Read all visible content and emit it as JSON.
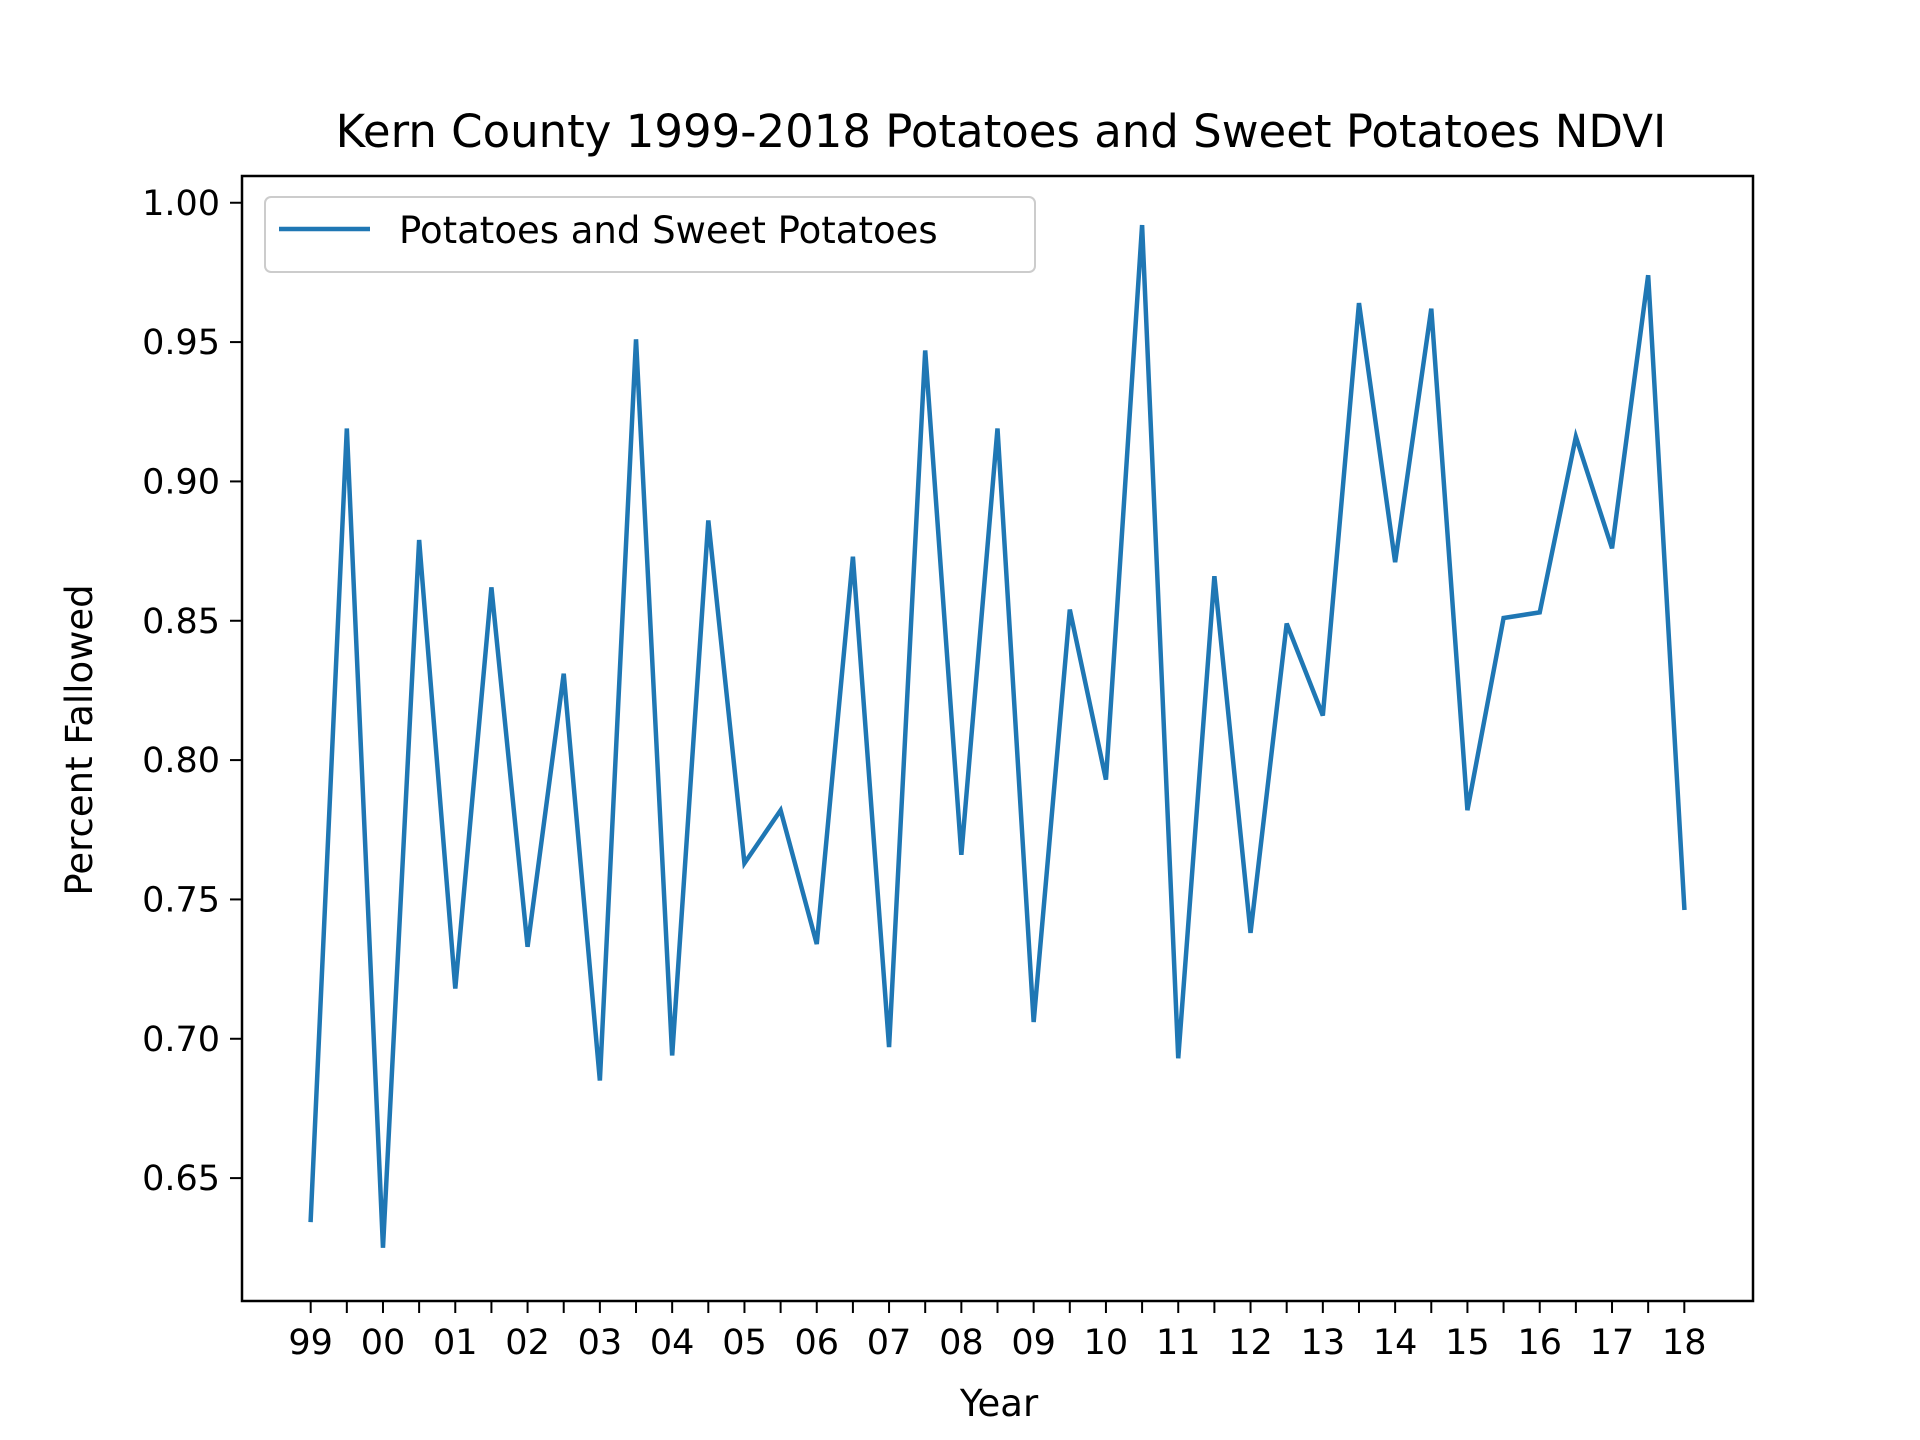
{
  "chart_data": {
    "type": "line",
    "title": "Kern County 1999-2018 Potatoes and Sweet Potatoes NDVI",
    "xlabel": "Year",
    "ylabel": "Percent Fallowed",
    "x_tick_labels": [
      "99",
      "00",
      "01",
      "02",
      "03",
      "04",
      "05",
      "06",
      "07",
      "08",
      "09",
      "10",
      "11",
      "12",
      "13",
      "14",
      "15",
      "16",
      "17",
      "18"
    ],
    "y_tick_labels": [
      "0.65",
      "0.70",
      "0.75",
      "0.80",
      "0.85",
      "0.90",
      "0.95",
      "1.00"
    ],
    "y_ticks": [
      0.65,
      0.7,
      0.75,
      0.8,
      0.85,
      0.9,
      0.95,
      1.0
    ],
    "xlim": [
      1998.05,
      2018.95
    ],
    "ylim": [
      0.6059,
      1.0096
    ],
    "grid": false,
    "legend_position": "top-left",
    "series": [
      {
        "name": "Potatoes and Sweet Potatoes",
        "color": "#1f77b4",
        "x": [
          1999,
          1999.5,
          2000,
          2000.5,
          2001,
          2001.5,
          2002,
          2002.5,
          2003,
          2003.5,
          2004,
          2004.5,
          2005,
          2005.5,
          2006,
          2006.5,
          2007,
          2007.5,
          2008,
          2008.5,
          2009,
          2009.5,
          2010,
          2010.5,
          2011,
          2011.5,
          2012,
          2012.5,
          2013,
          2013.5,
          2014,
          2014.5,
          2015,
          2015.5,
          2016,
          2016.5,
          2017,
          2017.5,
          2018
        ],
        "values": [
          0.635,
          0.919,
          0.625,
          0.879,
          0.718,
          0.862,
          0.733,
          0.831,
          0.685,
          0.951,
          0.694,
          0.886,
          0.763,
          0.782,
          0.734,
          0.873,
          0.697,
          0.947,
          0.766,
          0.919,
          0.706,
          0.854,
          0.793,
          0.992,
          0.693,
          0.866,
          0.738,
          0.849,
          0.816,
          0.964,
          0.871,
          0.962,
          0.782,
          0.851,
          0.853,
          0.916,
          0.876,
          0.974,
          0.747
        ]
      }
    ]
  }
}
